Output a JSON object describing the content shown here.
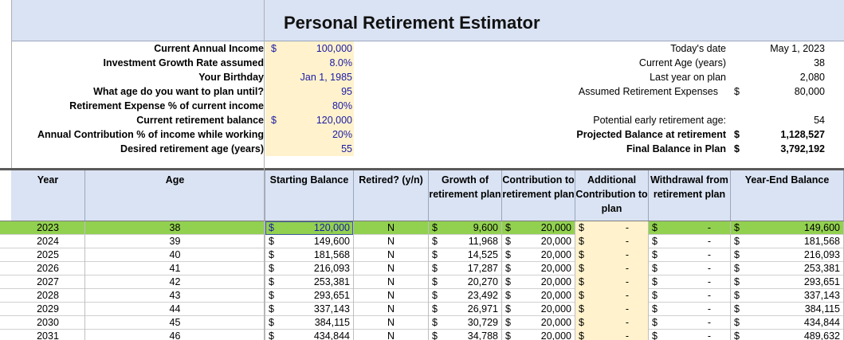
{
  "title": "Personal Retirement Estimator",
  "inputs": [
    {
      "label": "Current Annual Income",
      "dollar": "$",
      "value": "100,000"
    },
    {
      "label": "Investment Growth Rate assumed",
      "dollar": "",
      "value": "8.0%"
    },
    {
      "label": "Your Birthday",
      "dollar": "",
      "value": "Jan 1, 1985"
    },
    {
      "label": "What age do you want to plan until?",
      "dollar": "",
      "value": "95"
    },
    {
      "label": "Retirement Expense % of current income",
      "dollar": "",
      "value": "80%"
    },
    {
      "label": "Current retirement balance",
      "dollar": "$",
      "value": "120,000"
    },
    {
      "label": "Annual Contribution % of income while working",
      "dollar": "",
      "value": "20%"
    },
    {
      "label": "Desired retirement age (years)",
      "dollar": "",
      "value": "55"
    }
  ],
  "summary_top": [
    {
      "label": "Today's date",
      "dollar": "",
      "value": "May 1, 2023"
    },
    {
      "label": "Current Age (years)",
      "dollar": "",
      "value": "38"
    },
    {
      "label": "Last year on plan",
      "dollar": "",
      "value": "2,080"
    },
    {
      "label": "Assumed Retirement Expenses",
      "dollar": "$",
      "value": "80,000"
    }
  ],
  "summary_bottom": [
    {
      "label": "Potential early retirement age:",
      "dollar": "",
      "value": "54"
    },
    {
      "label": "Projected Balance at retirement",
      "dollar": "$",
      "value": "1,128,527"
    },
    {
      "label": "Final Balance in Plan",
      "dollar": "$",
      "value": "3,792,192"
    }
  ],
  "headers": {
    "year": "Year",
    "age": "Age",
    "starting_balance": "Starting Balance",
    "retired": "Retired? (y/n)",
    "growth": "Growth of retirement plan",
    "contribution": "Contribution to retirement plan",
    "additional": "Additional Contribution to plan",
    "withdrawal": "Withdrawal from retirement plan",
    "year_end": "Year-End Balance"
  },
  "currency_symbol": "$",
  "dash": "-",
  "rows": [
    {
      "year": "2023",
      "age": "38",
      "start": "120,000",
      "retired": "N",
      "growth": "9,600",
      "contrib": "20,000",
      "end": "149,600"
    },
    {
      "year": "2024",
      "age": "39",
      "start": "149,600",
      "retired": "N",
      "growth": "11,968",
      "contrib": "20,000",
      "end": "181,568"
    },
    {
      "year": "2025",
      "age": "40",
      "start": "181,568",
      "retired": "N",
      "growth": "14,525",
      "contrib": "20,000",
      "end": "216,093"
    },
    {
      "year": "2026",
      "age": "41",
      "start": "216,093",
      "retired": "N",
      "growth": "17,287",
      "contrib": "20,000",
      "end": "253,381"
    },
    {
      "year": "2027",
      "age": "42",
      "start": "253,381",
      "retired": "N",
      "growth": "20,270",
      "contrib": "20,000",
      "end": "293,651"
    },
    {
      "year": "2028",
      "age": "43",
      "start": "293,651",
      "retired": "N",
      "growth": "23,492",
      "contrib": "20,000",
      "end": "337,143"
    },
    {
      "year": "2029",
      "age": "44",
      "start": "337,143",
      "retired": "N",
      "growth": "26,971",
      "contrib": "20,000",
      "end": "384,115"
    },
    {
      "year": "2030",
      "age": "45",
      "start": "384,115",
      "retired": "N",
      "growth": "30,729",
      "contrib": "20,000",
      "end": "434,844"
    },
    {
      "year": "2031",
      "age": "46",
      "start": "434,844",
      "retired": "N",
      "growth": "34,788",
      "contrib": "20,000",
      "end": "489,632"
    }
  ],
  "colors": {
    "title_band": "#dae3f3",
    "input_fill": "#fff2cc",
    "highlight_row": "#92d050",
    "input_text": "#1a1aa6"
  }
}
